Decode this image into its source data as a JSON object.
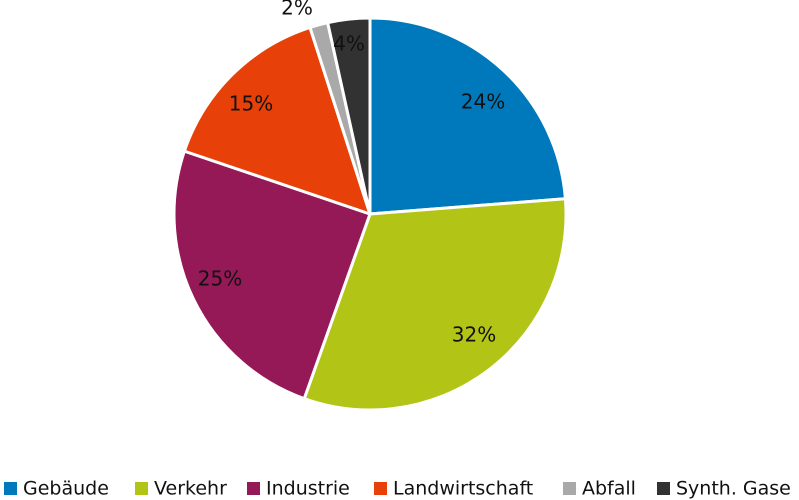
{
  "chart_data": {
    "type": "pie",
    "title": "",
    "unit": "%",
    "slices": [
      {
        "name": "Gebäude",
        "value": 24,
        "label": "24%",
        "color": "#0079BC"
      },
      {
        "name": "Verkehr",
        "value": 32,
        "label": "32%",
        "color": "#B2C416"
      },
      {
        "name": "Industrie",
        "value": 25,
        "label": "25%",
        "color": "#951956"
      },
      {
        "name": "Landwirtschaft",
        "value": 15,
        "label": "15%",
        "color": "#E74109"
      },
      {
        "name": "Abfall",
        "value": 1.5,
        "label": "2%",
        "color": "#A9A9A9"
      },
      {
        "name": "Synth. Gase",
        "value": 3.5,
        "label": "4%",
        "color": "#323232"
      }
    ],
    "start_angle": "12 o'clock",
    "direction": "clockwise",
    "legend_position": "bottom",
    "slice_border_color": "#ffffff"
  }
}
